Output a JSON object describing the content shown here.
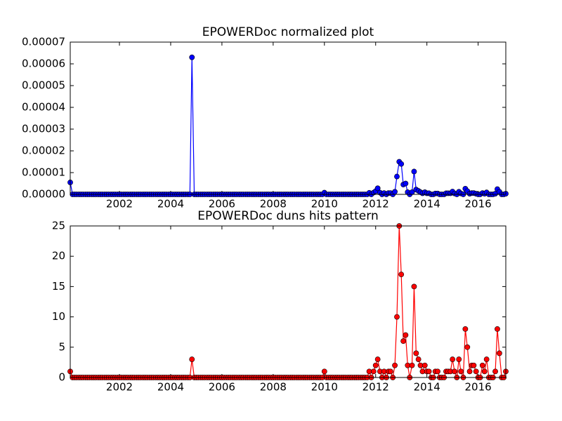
{
  "chart_data": [
    {
      "type": "line",
      "title": "EPOWERDoc normalized plot",
      "x": [
        2000.08,
        2000.17,
        2000.25,
        2000.33,
        2000.42,
        2000.5,
        2000.58,
        2000.67,
        2000.75,
        2000.83,
        2000.92,
        2001,
        2001.08,
        2001.17,
        2001.25,
        2001.33,
        2001.42,
        2001.5,
        2001.58,
        2001.67,
        2001.75,
        2001.83,
        2001.92,
        2002,
        2002.08,
        2002.17,
        2002.25,
        2002.33,
        2002.42,
        2002.5,
        2002.58,
        2002.67,
        2002.75,
        2002.83,
        2002.92,
        2003,
        2003.08,
        2003.17,
        2003.25,
        2003.33,
        2003.42,
        2003.5,
        2003.58,
        2003.67,
        2003.75,
        2003.83,
        2003.92,
        2004,
        2004.08,
        2004.17,
        2004.25,
        2004.33,
        2004.42,
        2004.5,
        2004.58,
        2004.67,
        2004.75,
        2004.83,
        2004.92,
        2005,
        2005.08,
        2005.17,
        2005.25,
        2005.33,
        2005.42,
        2005.5,
        2005.58,
        2005.67,
        2005.75,
        2005.83,
        2005.92,
        2006,
        2006.08,
        2006.17,
        2006.25,
        2006.33,
        2006.42,
        2006.5,
        2006.58,
        2006.67,
        2006.75,
        2006.83,
        2006.92,
        2007,
        2007.08,
        2007.17,
        2007.25,
        2007.33,
        2007.42,
        2007.5,
        2007.58,
        2007.67,
        2007.75,
        2007.83,
        2007.92,
        2008,
        2008.08,
        2008.17,
        2008.25,
        2008.33,
        2008.42,
        2008.5,
        2008.58,
        2008.67,
        2008.75,
        2008.83,
        2008.92,
        2009,
        2009.08,
        2009.17,
        2009.25,
        2009.33,
        2009.42,
        2009.5,
        2009.58,
        2009.67,
        2009.75,
        2009.83,
        2009.92,
        2010,
        2010.08,
        2010.17,
        2010.25,
        2010.33,
        2010.42,
        2010.5,
        2010.58,
        2010.67,
        2010.75,
        2010.83,
        2010.92,
        2011,
        2011.08,
        2011.17,
        2011.25,
        2011.33,
        2011.42,
        2011.5,
        2011.58,
        2011.67,
        2011.75,
        2011.83,
        2011.92,
        2012,
        2012.08,
        2012.17,
        2012.25,
        2012.33,
        2012.42,
        2012.5,
        2012.58,
        2012.67,
        2012.75,
        2012.83,
        2012.92,
        2013,
        2013.08,
        2013.17,
        2013.25,
        2013.33,
        2013.42,
        2013.5,
        2013.58,
        2013.67,
        2013.75,
        2013.83,
        2013.92,
        2014,
        2014.08,
        2014.17,
        2014.25,
        2014.33,
        2014.42,
        2014.5,
        2014.58,
        2014.67,
        2014.75,
        2014.83,
        2014.92,
        2015,
        2015.08,
        2015.17,
        2015.25,
        2015.33,
        2015.42,
        2015.5,
        2015.58,
        2015.67,
        2015.75,
        2015.83,
        2015.92,
        2016,
        2016.08,
        2016.17,
        2016.25,
        2016.33,
        2016.42,
        2016.5,
        2016.58,
        2016.67,
        2016.75,
        2016.83,
        2016.92,
        2017,
        2017.08
      ],
      "xlim": [
        2000.08,
        2017.08
      ],
      "xticks": [
        2002,
        2004,
        2006,
        2008,
        2010,
        2012,
        2014,
        2016
      ],
      "ylim": [
        0,
        7e-05
      ],
      "yticks": [
        {
          "value": 0,
          "label": "0.00000"
        },
        {
          "value": 1e-05,
          "label": "0.00001"
        },
        {
          "value": 2e-05,
          "label": "0.00002"
        },
        {
          "value": 3e-05,
          "label": "0.00003"
        },
        {
          "value": 4e-05,
          "label": "0.00004"
        },
        {
          "value": 5e-05,
          "label": "0.00005"
        },
        {
          "value": 6e-05,
          "label": "0.00006"
        },
        {
          "value": 7e-05,
          "label": "0.00007"
        }
      ],
      "series": [
        {
          "color": "#0000ff",
          "values": [
            5.5e-06,
            0,
            0,
            0,
            0,
            0,
            0,
            0,
            0,
            0,
            0,
            0,
            0,
            0,
            0,
            0,
            0,
            0,
            0,
            0,
            0,
            0,
            0,
            0,
            0,
            0,
            0,
            0,
            0,
            0,
            0,
            0,
            0,
            0,
            0,
            0,
            0,
            0,
            0,
            0,
            0,
            0,
            0,
            0,
            0,
            0,
            0,
            0,
            0,
            0,
            0,
            0,
            0,
            0,
            0,
            0,
            0,
            6.3e-05,
            0,
            0,
            0,
            0,
            0,
            0,
            0,
            0,
            0,
            0,
            0,
            0,
            0,
            0,
            0,
            0,
            0,
            0,
            0,
            0,
            0,
            0,
            0,
            0,
            0,
            0,
            0,
            0,
            0,
            0,
            0,
            0,
            0,
            0,
            0,
            0,
            0,
            0,
            0,
            0,
            0,
            0,
            0,
            0,
            0,
            0,
            0,
            0,
            0,
            0,
            0,
            0,
            0,
            0,
            0,
            0,
            0,
            0,
            0,
            0,
            0,
            8e-07,
            0,
            0,
            0,
            0,
            0,
            0,
            0,
            0,
            0,
            0,
            0,
            0,
            0,
            0,
            0,
            0,
            0,
            0,
            0,
            0,
            7e-07,
            0,
            8e-07,
            1.5e-06,
            2.8e-06,
            8e-07,
            0,
            6e-07,
            0,
            6e-07,
            6e-07,
            0,
            1.2e-06,
            8.2e-06,
            1.5e-05,
            1.4e-05,
            4.5e-06,
            5e-06,
            1e-06,
            0,
            1e-06,
            1.05e-05,
            2.2e-06,
            1.6e-06,
            1e-06,
            5e-07,
            1e-06,
            5e-07,
            5e-07,
            0,
            0,
            4e-07,
            4e-07,
            0,
            0,
            0,
            5e-07,
            5e-07,
            5e-07,
            1.3e-06,
            4e-07,
            0,
            1.2e-06,
            4e-07,
            0,
            2.6e-06,
            1.5e-06,
            3e-07,
            6e-07,
            6e-07,
            3e-07,
            0,
            0,
            6e-07,
            3e-07,
            9e-07,
            0,
            0,
            0,
            3e-07,
            2.4e-06,
            1.2e-06,
            0,
            0,
            3e-07
          ]
        }
      ]
    },
    {
      "type": "line",
      "title": "EPOWERDoc duns hits pattern",
      "x": [
        2000.08,
        2000.17,
        2000.25,
        2000.33,
        2000.42,
        2000.5,
        2000.58,
        2000.67,
        2000.75,
        2000.83,
        2000.92,
        2001,
        2001.08,
        2001.17,
        2001.25,
        2001.33,
        2001.42,
        2001.5,
        2001.58,
        2001.67,
        2001.75,
        2001.83,
        2001.92,
        2002,
        2002.08,
        2002.17,
        2002.25,
        2002.33,
        2002.42,
        2002.5,
        2002.58,
        2002.67,
        2002.75,
        2002.83,
        2002.92,
        2003,
        2003.08,
        2003.17,
        2003.25,
        2003.33,
        2003.42,
        2003.5,
        2003.58,
        2003.67,
        2003.75,
        2003.83,
        2003.92,
        2004,
        2004.08,
        2004.17,
        2004.25,
        2004.33,
        2004.42,
        2004.5,
        2004.58,
        2004.67,
        2004.75,
        2004.83,
        2004.92,
        2005,
        2005.08,
        2005.17,
        2005.25,
        2005.33,
        2005.42,
        2005.5,
        2005.58,
        2005.67,
        2005.75,
        2005.83,
        2005.92,
        2006,
        2006.08,
        2006.17,
        2006.25,
        2006.33,
        2006.42,
        2006.5,
        2006.58,
        2006.67,
        2006.75,
        2006.83,
        2006.92,
        2007,
        2007.08,
        2007.17,
        2007.25,
        2007.33,
        2007.42,
        2007.5,
        2007.58,
        2007.67,
        2007.75,
        2007.83,
        2007.92,
        2008,
        2008.08,
        2008.17,
        2008.25,
        2008.33,
        2008.42,
        2008.5,
        2008.58,
        2008.67,
        2008.75,
        2008.83,
        2008.92,
        2009,
        2009.08,
        2009.17,
        2009.25,
        2009.33,
        2009.42,
        2009.5,
        2009.58,
        2009.67,
        2009.75,
        2009.83,
        2009.92,
        2010,
        2010.08,
        2010.17,
        2010.25,
        2010.33,
        2010.42,
        2010.5,
        2010.58,
        2010.67,
        2010.75,
        2010.83,
        2010.92,
        2011,
        2011.08,
        2011.17,
        2011.25,
        2011.33,
        2011.42,
        2011.5,
        2011.58,
        2011.67,
        2011.75,
        2011.83,
        2011.92,
        2012,
        2012.08,
        2012.17,
        2012.25,
        2012.33,
        2012.42,
        2012.5,
        2012.58,
        2012.67,
        2012.75,
        2012.83,
        2012.92,
        2013,
        2013.08,
        2013.17,
        2013.25,
        2013.33,
        2013.42,
        2013.5,
        2013.58,
        2013.67,
        2013.75,
        2013.83,
        2013.92,
        2014,
        2014.08,
        2014.17,
        2014.25,
        2014.33,
        2014.42,
        2014.5,
        2014.58,
        2014.67,
        2014.75,
        2014.83,
        2014.92,
        2015,
        2015.08,
        2015.17,
        2015.25,
        2015.33,
        2015.42,
        2015.5,
        2015.58,
        2015.67,
        2015.75,
        2015.83,
        2015.92,
        2016,
        2016.08,
        2016.17,
        2016.25,
        2016.33,
        2016.42,
        2016.5,
        2016.58,
        2016.67,
        2016.75,
        2016.83,
        2016.92,
        2017,
        2017.08
      ],
      "xlim": [
        2000.08,
        2017.08
      ],
      "xticks": [
        2002,
        2004,
        2006,
        2008,
        2010,
        2012,
        2014,
        2016
      ],
      "ylim": [
        0,
        25
      ],
      "yticks": [
        0,
        5,
        10,
        15,
        20,
        25
      ],
      "series": [
        {
          "color": "#ff0000",
          "values": [
            1,
            0,
            0,
            0,
            0,
            0,
            0,
            0,
            0,
            0,
            0,
            0,
            0,
            0,
            0,
            0,
            0,
            0,
            0,
            0,
            0,
            0,
            0,
            0,
            0,
            0,
            0,
            0,
            0,
            0,
            0,
            0,
            0,
            0,
            0,
            0,
            0,
            0,
            0,
            0,
            0,
            0,
            0,
            0,
            0,
            0,
            0,
            0,
            0,
            0,
            0,
            0,
            0,
            0,
            0,
            0,
            0,
            3,
            0,
            0,
            0,
            0,
            0,
            0,
            0,
            0,
            0,
            0,
            0,
            0,
            0,
            0,
            0,
            0,
            0,
            0,
            0,
            0,
            0,
            0,
            0,
            0,
            0,
            0,
            0,
            0,
            0,
            0,
            0,
            0,
            0,
            0,
            0,
            0,
            0,
            0,
            0,
            0,
            0,
            0,
            0,
            0,
            0,
            0,
            0,
            0,
            0,
            0,
            0,
            0,
            0,
            0,
            0,
            0,
            0,
            0,
            0,
            0,
            0,
            1,
            0,
            0,
            0,
            0,
            0,
            0,
            0,
            0,
            0,
            0,
            0,
            0,
            0,
            0,
            0,
            0,
            0,
            0,
            0,
            0,
            1,
            0,
            1,
            2,
            3,
            1,
            0,
            1,
            0,
            1,
            1,
            0,
            2,
            10,
            25,
            17,
            6,
            7,
            2,
            0,
            2,
            15,
            4,
            3,
            2,
            1,
            2,
            1,
            1,
            0,
            0,
            1,
            1,
            0,
            0,
            0,
            1,
            1,
            1,
            3,
            1,
            0,
            3,
            1,
            0,
            8,
            5,
            1,
            2,
            2,
            1,
            0,
            0,
            2,
            1,
            3,
            0,
            0,
            0,
            1,
            8,
            4,
            0,
            0,
            1
          ]
        }
      ]
    }
  ]
}
